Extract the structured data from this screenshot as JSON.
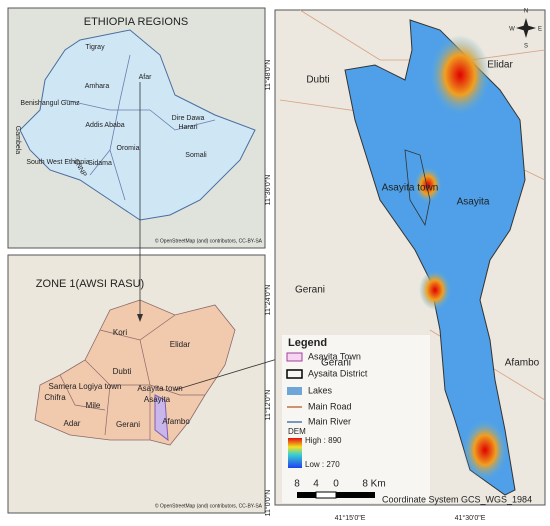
{
  "ethiopia_map": {
    "title": "ETHIOPIA REGIONS",
    "regions": [
      "Tigray",
      "Afar",
      "Amhara",
      "Benishangul Gumz",
      "Addis Ababa",
      "Dire Dawa",
      "Harari",
      "Gambela",
      "Oromia",
      "Somali",
      "South West Ethiopia",
      "Sidama",
      "SNNP"
    ],
    "attribution": "© OpenStreetMap (and) contributors, CC-BY-SA"
  },
  "zone_map": {
    "title": "ZONE 1(AWSI RASU)",
    "places": [
      "Kori",
      "Elidar",
      "Dubti",
      "Samera Logiya town",
      "Asayita town",
      "Asayita",
      "Chifra",
      "Mile",
      "Adar",
      "Gerani",
      "Afambo"
    ],
    "attribution": "© OpenStreetMap (and) contributors, CC-BY-SA"
  },
  "district_map": {
    "places": [
      "Dubti",
      "Elidar",
      "Asayita town",
      "Asayita",
      "Gerani",
      "Gerani",
      "Afambo"
    ],
    "latitude_labels": [
      "11°48'0\"N",
      "11°36'0\"N",
      "11°24'0\"N",
      "11°12'0\"N",
      "11°0'0\"N"
    ],
    "longitude_labels": [
      "41°15'0\"E",
      "41°30'0\"E"
    ],
    "compass": [
      "N",
      "E",
      "S",
      "W"
    ],
    "legend": {
      "title": "Legend",
      "items": [
        "Asayita Town",
        "Aysaita District",
        "Lakes",
        "Main Road",
        "Main River"
      ],
      "dem_title": "DEM",
      "dem_high": "High : 890",
      "dem_low": "Low : 270"
    },
    "scale_labels": [
      "8",
      "4",
      "0",
      "8 Km"
    ],
    "coordinate_system": "Coordinate System GCS_WGS_1984"
  }
}
